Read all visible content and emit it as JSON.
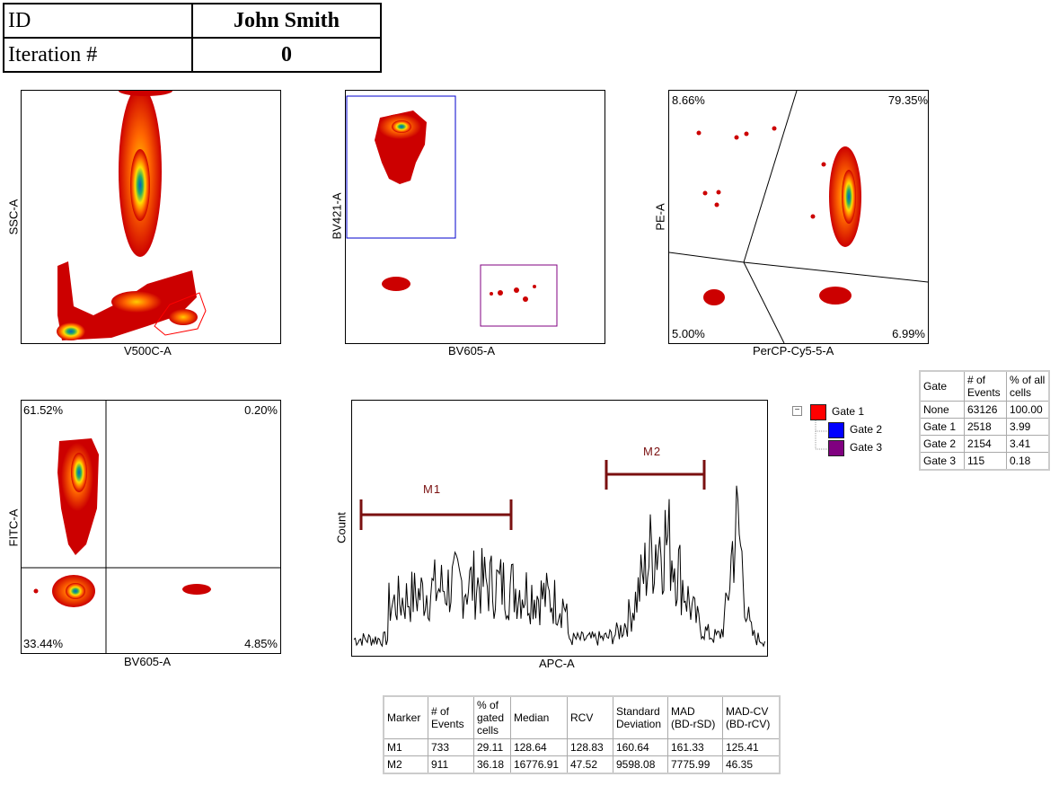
{
  "header": {
    "id_label": "ID",
    "id_value": "John Smith",
    "iter_label": "Iteration #",
    "iter_value": "0"
  },
  "plots": {
    "p1": {
      "x_label": "V500C-A",
      "y_label": "SSC-A"
    },
    "p2": {
      "x_label": "BV605-A",
      "y_label": "BV421-A"
    },
    "p3": {
      "x_label": "PerCP-Cy5-5-A",
      "y_label": "PE-A",
      "q_tl": "8.66%",
      "q_tr": "79.35%",
      "q_bl": "5.00%",
      "q_br": "6.99%"
    },
    "p4": {
      "x_label": "BV605-A",
      "y_label": "FITC-A",
      "q_tl": "61.52%",
      "q_tr": "0.20%",
      "q_bl": "33.44%",
      "q_br": "4.85%"
    },
    "p5": {
      "x_label": "APC-A",
      "y_label": "Count",
      "m1": "M1",
      "m2": "M2"
    }
  },
  "gate_tree": {
    "items": [
      {
        "label": "Gate 1",
        "color": "#ff0000"
      },
      {
        "label": "Gate 2",
        "color": "#0000ff"
      },
      {
        "label": "Gate 3",
        "color": "#800080"
      }
    ]
  },
  "gate_table": {
    "headers": [
      "Gate",
      "# of Events",
      "% of all cells"
    ],
    "rows": [
      [
        "None",
        "63126",
        "100.00"
      ],
      [
        "Gate 1",
        "2518",
        "3.99"
      ],
      [
        "Gate 2",
        "2154",
        "3.41"
      ],
      [
        "Gate 3",
        "115",
        "0.18"
      ]
    ]
  },
  "marker_table": {
    "headers": [
      "Marker",
      "# of Events",
      "% of gated cells",
      "Median",
      "RCV",
      "Standard Deviation",
      "MAD (BD-rSD)",
      "MAD-CV (BD-rCV)"
    ],
    "rows": [
      [
        "M1",
        "733",
        "29.11",
        "128.64",
        "128.83",
        "160.64",
        "161.33",
        "125.41"
      ],
      [
        "M2",
        "911",
        "36.18",
        "16776.91",
        "47.52",
        "9598.08",
        "7775.99",
        "46.35"
      ]
    ]
  },
  "chart_data": [
    {
      "type": "scatter",
      "xlabel": "V500C-A",
      "ylabel": "SSC-A"
    },
    {
      "type": "scatter",
      "xlabel": "BV605-A",
      "ylabel": "BV421-A"
    },
    {
      "type": "scatter",
      "xlabel": "PerCP-Cy5-5-A",
      "ylabel": "PE-A",
      "quadrants": {
        "top_left": 8.66,
        "top_right": 79.35,
        "bottom_left": 5.0,
        "bottom_right": 6.99
      }
    },
    {
      "type": "scatter",
      "xlabel": "BV605-A",
      "ylabel": "FITC-A",
      "quadrants": {
        "top_left": 61.52,
        "top_right": 0.2,
        "bottom_left": 33.44,
        "bottom_right": 4.85
      }
    },
    {
      "type": "bar",
      "xlabel": "APC-A",
      "ylabel": "Count",
      "markers": [
        "M1",
        "M2"
      ]
    }
  ],
  "colors": {
    "low": "#cc0000",
    "mid": "#ffcc00",
    "high": "#0066cc",
    "marker": "#7a1010"
  }
}
